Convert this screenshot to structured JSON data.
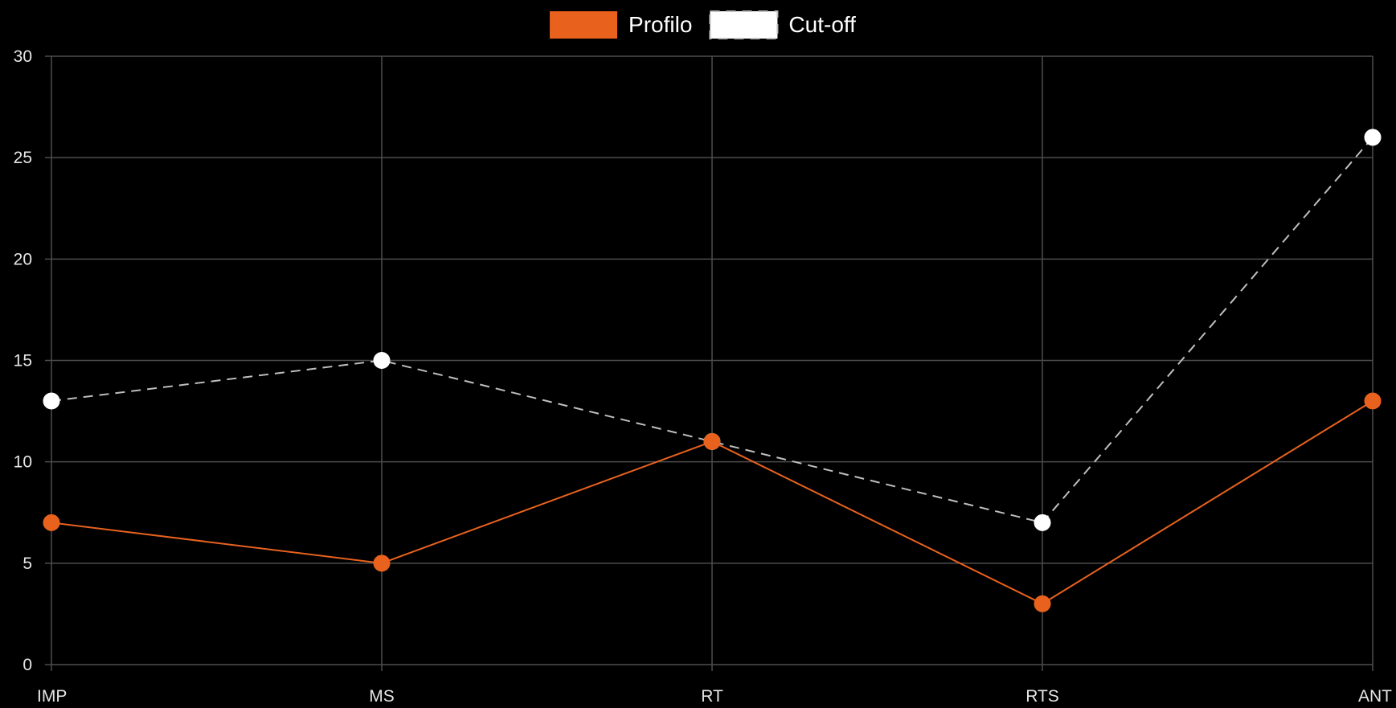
{
  "chart_data": {
    "type": "line",
    "categories": [
      "IMP",
      "MS",
      "RT",
      "RTS",
      "ANT"
    ],
    "series": [
      {
        "name": "Profilo",
        "values": [
          7,
          5,
          11,
          3,
          13
        ],
        "color": "#e8621e",
        "line_style": "solid",
        "point_fill": "#e8621e"
      },
      {
        "name": "Cut-off",
        "values": [
          13,
          15,
          11,
          7,
          26
        ],
        "color": "#bfbfbf",
        "line_style": "dashed",
        "point_fill": "#ffffff"
      }
    ],
    "yticks": [
      0,
      5,
      10,
      15,
      20,
      25,
      30
    ],
    "ylim": [
      0,
      30
    ],
    "grid": true,
    "legend_position": "top-center",
    "background": "#000000",
    "grid_color": "#4d4d4d",
    "text_color": "#e6e6e6"
  }
}
